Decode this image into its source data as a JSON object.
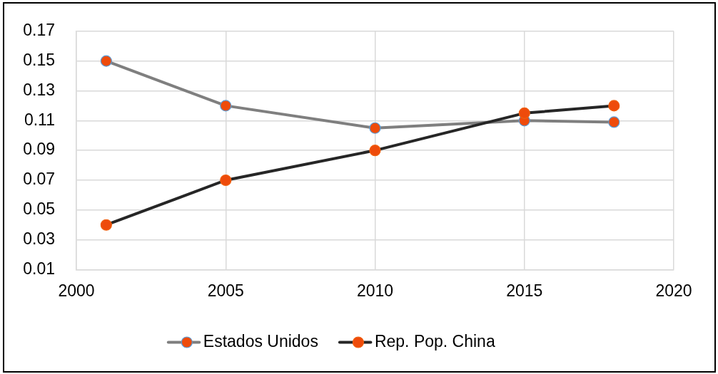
{
  "chart_data": {
    "type": "line",
    "x": [
      2001,
      2005,
      2010,
      2015,
      2018
    ],
    "series": [
      {
        "name": "Estados Unidos",
        "color": "#7f7f7f",
        "values": [
          0.15,
          0.12,
          0.105,
          0.11,
          0.109
        ]
      },
      {
        "name": "Rep. Pop. China",
        "color": "#262626",
        "values": [
          0.04,
          0.07,
          0.09,
          0.115,
          0.12
        ]
      }
    ],
    "xlim": [
      2000,
      2020
    ],
    "xticks": [
      2000,
      2005,
      2010,
      2015,
      2020
    ],
    "ylim": [
      0.01,
      0.17
    ],
    "yticks": [
      0.01,
      0.03,
      0.05,
      0.07,
      0.09,
      0.11,
      0.13,
      0.15,
      0.17
    ],
    "grid": true,
    "legend": "bottom",
    "marker": "circle",
    "line_style": "solid"
  }
}
